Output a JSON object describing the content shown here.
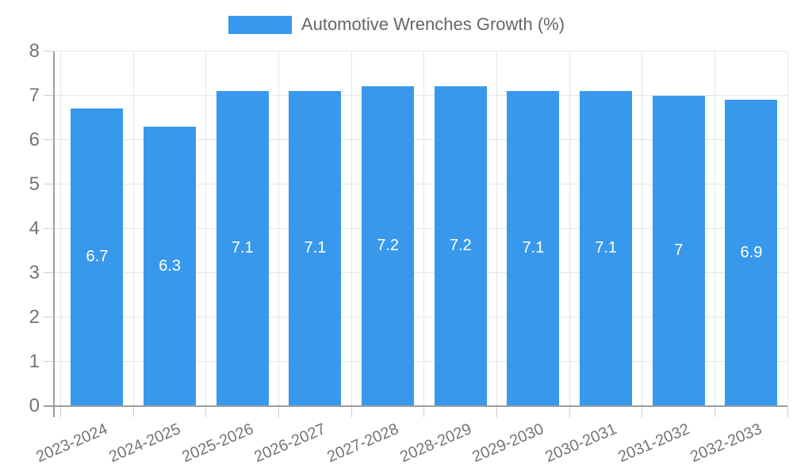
{
  "legend": {
    "label": "Automotive Wrenches Growth (%)",
    "swatch_color": "#3899EC"
  },
  "chart_data": {
    "type": "bar",
    "title": "Automotive Wrenches Growth (%)",
    "categories": [
      "2023-2024",
      "2024-2025",
      "2025-2026",
      "2026-2027",
      "2027-2028",
      "2028-2029",
      "2029-2030",
      "2030-2031",
      "2031-2032",
      "2032-2033"
    ],
    "series": [
      {
        "name": "Automotive Wrenches Growth (%)",
        "values": [
          6.7,
          6.3,
          7.1,
          7.1,
          7.2,
          7.2,
          7.1,
          7.1,
          7,
          6.9
        ],
        "display_labels": [
          "6.7",
          "6.3",
          "7.1",
          "7.1",
          "7.2",
          "7.2",
          "7.1",
          "7.1",
          "7",
          "6.9"
        ]
      }
    ],
    "xlabel": "",
    "ylabel": "",
    "ylim": [
      0,
      8
    ],
    "yticks": [
      0,
      1,
      2,
      3,
      4,
      5,
      6,
      7,
      8
    ],
    "grid": true,
    "legend_position": "top",
    "bar_label_position": "center",
    "colors": {
      "bar": "#3899EC",
      "bar_label": "#FFFFFF",
      "axis_line": "#9E9E9E",
      "gridline": "#E6E6E6",
      "tick": "#CFCFCF",
      "axis_text": "#757575",
      "legend_text": "#666666",
      "background": "#FFFFFF"
    }
  }
}
